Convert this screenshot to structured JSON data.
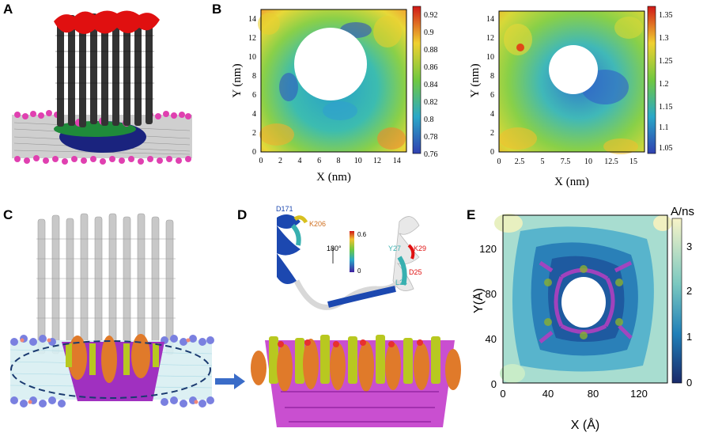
{
  "panels": {
    "A": {
      "label": "A"
    },
    "B": {
      "label": "B",
      "left": {
        "xlabel": "X (nm)",
        "ylabel": "Y (nm)",
        "xticks": [
          "0",
          "2",
          "4",
          "6",
          "8",
          "10",
          "12",
          "14"
        ],
        "yticks": [
          "0",
          "2",
          "4",
          "6",
          "8",
          "10",
          "12",
          "14"
        ],
        "cbar_ticks": [
          "0.92",
          "0.9",
          "0.88",
          "0.86",
          "0.84",
          "0.82",
          "0.8",
          "0.78",
          "0.76"
        ]
      },
      "right": {
        "xlabel": "X (nm)",
        "ylabel": "Y (nm)",
        "xticks": [
          "0",
          "2.5",
          "5",
          "7.5",
          "10",
          "12.5",
          "15"
        ],
        "yticks": [
          "0",
          "2",
          "4",
          "6",
          "8",
          "10",
          "12",
          "14"
        ],
        "cbar_ticks": [
          "1.35",
          "1.3",
          "1.25",
          "1.2",
          "1.15",
          "1.1",
          "1.05"
        ]
      }
    },
    "C": {
      "label": "C"
    },
    "D": {
      "label": "D",
      "residues": {
        "d171": "D171",
        "k206": "K206",
        "y27": "Y27",
        "k29": "K29",
        "d25": "D25",
        "l24": "L24"
      },
      "rotation": "180°",
      "scale_max": "0.6",
      "scale_min": "0"
    },
    "E": {
      "label": "E",
      "unit": "Å/ns",
      "xlabel": "X (Å)",
      "ylabel": "Y(Å)",
      "xticks": [
        "0",
        "40",
        "80",
        "120"
      ],
      "yticks": [
        "0",
        "40",
        "80",
        "120"
      ],
      "cbar_ticks": [
        "3",
        "2",
        "1",
        "0"
      ]
    }
  },
  "colors": {
    "membrane_head": "#e040b0",
    "helix_dark": "#333333",
    "helix_red": "#e01010",
    "ribbon_blue": "#1c48b0",
    "ribbon_magenta": "#c030c8",
    "ribbon_yellow": "#b8c820",
    "lipid_orange": "#e0803a",
    "arrow": "#3a6cc8"
  }
}
